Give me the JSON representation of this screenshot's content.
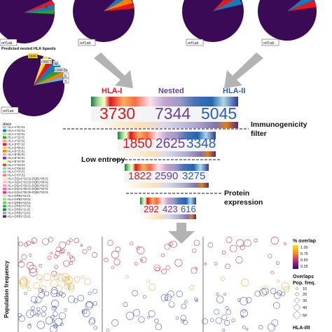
{
  "pies": {
    "orf_label": "orf1ab",
    "nested_title": "Predicted nested HLA ligands",
    "nested_labels": [
      "ORF8",
      "ORF7a",
      "M",
      "ORF3a",
      "E",
      "S"
    ]
  },
  "headers": {
    "hla1": "HLA-I",
    "nested": "Nested",
    "hla2": "HLA-II"
  },
  "stages": [
    {
      "hla1": "3730",
      "nested": "7344",
      "hla2": "5045"
    },
    {
      "hla1": "1850",
      "nested": "2625",
      "hla2": "3348"
    },
    {
      "hla1": "1822",
      "nested": "2590",
      "hla2": "3275"
    },
    {
      "hla1": "292",
      "nested": "423",
      "hla2": "616"
    }
  ],
  "filters": {
    "immunogenicity": "Immunogenicity",
    "filter": "filter",
    "low_entropy": "Low entropy",
    "protein": "Protein",
    "expression": "expression"
  },
  "allele_legend": {
    "title": "Allele",
    "items": [
      "HLA-A*01:01",
      "HLA-A*02:01",
      "HLA-A*03:01",
      "HLA-A*11:01",
      "HLA-A*24:02",
      "HLA-B*07:02",
      "HLA-B*08:01",
      "HLA-B*15:01",
      "HLA-B*35:01",
      "HLA-B*40:01",
      "HLA-B*44:02",
      "HLA-C*04:01",
      "HLA-C*06:02",
      "HLA-C*07:01",
      "HLA-C*07:02",
      "HLA-DQA1*01:01-DQB1*05:01",
      "HLA-DQA1*01:02-DQB1*06:02",
      "HLA-DQA1*03:01-DQB1*03:02",
      "HLA-DQA1*05:01-DQB1*02:01",
      "HLA-DQA1*05:05-DQB1*03:01",
      "HLA-DRB1*01:01",
      "HLA-DRB1*03:01",
      "HLA-DRB1*04:01",
      "HLA-DRB1*07:01",
      "HLA-DRB1*11:01",
      "HLA-DRB1*13:01",
      "HLA-DRB1*15:01"
    ]
  },
  "scatter": {
    "ylabel": "Population frequency",
    "y_ticks": [
      "1.0",
      "0.5",
      "0.0"
    ]
  },
  "right_legend": {
    "overlap_title": "% overlap",
    "overlap_ticks": [
      "1.00",
      "0.75",
      "0.50",
      "0.25"
    ],
    "overlaps_title": "Overlaps",
    "popfreq_title": "Pop. freq.",
    "size_ticks": [
      "10",
      "20",
      "30",
      "40",
      "50"
    ],
    "hla_title": "HLA-I/II"
  },
  "colors": {
    "hla1_red": "#d7191c",
    "nested_purple": "#6a3d9a",
    "hla2_blue": "#2c5fa8",
    "pie_dark": "#3b0a57",
    "arrow_gray": "#b3b3b3"
  }
}
